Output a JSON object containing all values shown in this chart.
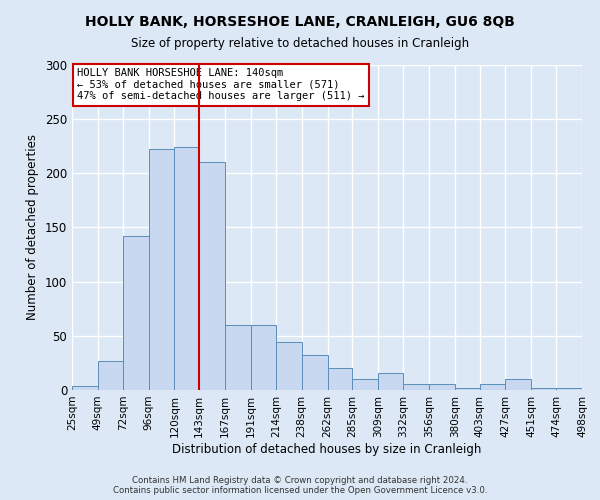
{
  "title": "HOLLY BANK, HORSESHOE LANE, CRANLEIGH, GU6 8QB",
  "subtitle": "Size of property relative to detached houses in Cranleigh",
  "xlabel": "Distribution of detached houses by size in Cranleigh",
  "ylabel": "Number of detached properties",
  "bar_color": "#c8d8f0",
  "bar_edge_color": "#5b8db8",
  "background_color": "#dce8f5",
  "grid_color": "#ffffff",
  "vline_x": 143,
  "vline_color": "#cc0000",
  "bin_edges": [
    25,
    49,
    72,
    96,
    120,
    143,
    167,
    191,
    214,
    238,
    262,
    285,
    309,
    332,
    356,
    380,
    403,
    427,
    451,
    474,
    498
  ],
  "bin_labels": [
    "25sqm",
    "49sqm",
    "72sqm",
    "96sqm",
    "120sqm",
    "143sqm",
    "167sqm",
    "191sqm",
    "214sqm",
    "238sqm",
    "262sqm",
    "285sqm",
    "309sqm",
    "332sqm",
    "356sqm",
    "380sqm",
    "403sqm",
    "427sqm",
    "451sqm",
    "474sqm",
    "498sqm"
  ],
  "bar_heights": [
    4,
    27,
    142,
    222,
    224,
    210,
    60,
    60,
    44,
    32,
    20,
    10,
    16,
    6,
    6,
    2,
    6,
    10,
    2,
    2
  ],
  "ylim": [
    0,
    300
  ],
  "yticks": [
    0,
    50,
    100,
    150,
    200,
    250,
    300
  ],
  "annotation_title": "HOLLY BANK HORSESHOE LANE: 140sqm",
  "annotation_line1": "← 53% of detached houses are smaller (571)",
  "annotation_line2": "47% of semi-detached houses are larger (511) →",
  "annotation_box_color": "#ffffff",
  "annotation_edge_color": "#cc0000",
  "footer1": "Contains HM Land Registry data © Crown copyright and database right 2024.",
  "footer2": "Contains public sector information licensed under the Open Government Licence v3.0."
}
